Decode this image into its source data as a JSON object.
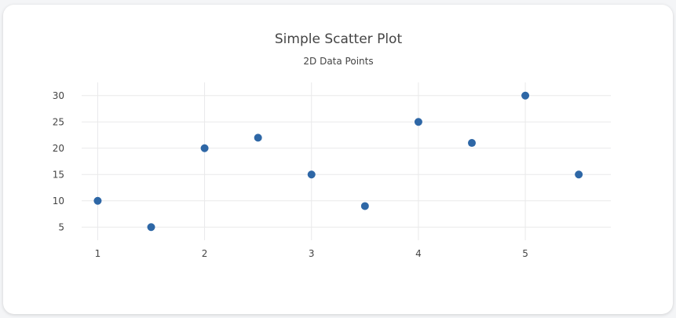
{
  "chart_data": {
    "type": "scatter",
    "title": "Simple Scatter Plot",
    "subtitle": "2D Data Points",
    "xlabel": "",
    "ylabel": "",
    "x": [
      1,
      1.5,
      2,
      2.5,
      3,
      3.5,
      4,
      4.5,
      5,
      5.5
    ],
    "y": [
      10,
      5,
      20,
      22,
      15,
      9,
      25,
      21,
      30,
      15
    ],
    "x_ticks": [
      "1",
      "2",
      "3",
      "4",
      "5"
    ],
    "y_ticks": [
      "5",
      "10",
      "15",
      "20",
      "25",
      "30"
    ],
    "xlim": [
      0.85,
      5.8
    ],
    "ylim": [
      2.5,
      32.5
    ],
    "grid": true,
    "marker_color": "#2e67a6"
  }
}
